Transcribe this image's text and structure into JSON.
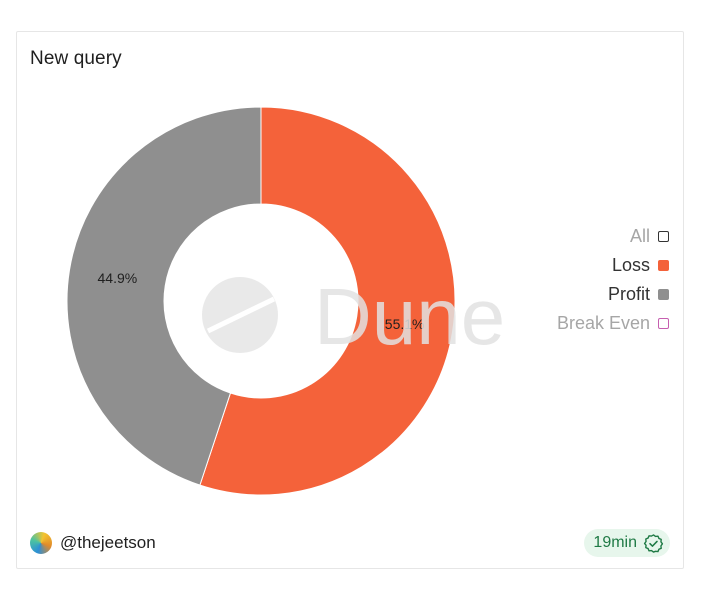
{
  "title": "New query",
  "chart_data": {
    "type": "pie",
    "donut": true,
    "slices": [
      {
        "name": "Loss",
        "value": 55.1,
        "label": "55.1%",
        "color": "#f4623a"
      },
      {
        "name": "Profit",
        "value": 44.9,
        "label": "44.9%",
        "color": "#8f8f8f"
      }
    ],
    "legend_placement": "right",
    "legend": [
      {
        "label": "All",
        "color": "#ffffff",
        "border": "#333333",
        "active": false
      },
      {
        "label": "Loss",
        "color": "#f4623a",
        "border": "#f4623a",
        "active": true
      },
      {
        "label": "Profit",
        "color": "#8f8f8f",
        "border": "#8f8f8f",
        "active": true
      },
      {
        "label": "Break Even",
        "color": "#ffffff",
        "border": "#c65fb0",
        "active": false
      }
    ]
  },
  "watermark": "Dune",
  "footer": {
    "username": "@thejeetson",
    "refresh": "19min"
  },
  "colors": {
    "text_active": "#333333",
    "text_inactive": "#a6a6a6",
    "badge_bg": "#e7f6ec",
    "badge_fg": "#1f7a45"
  }
}
